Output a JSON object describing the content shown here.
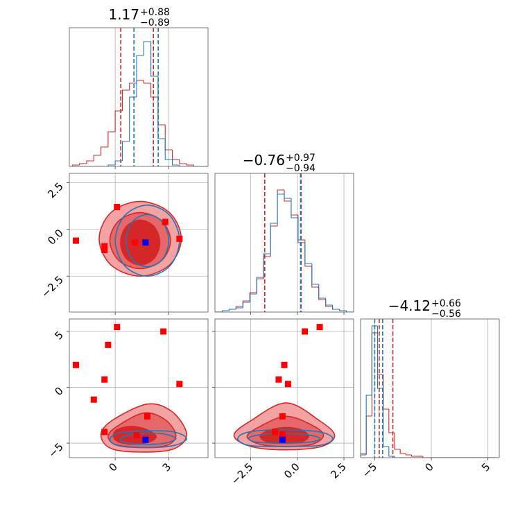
{
  "chart_data": [
    {
      "type": "histogram",
      "title": "1.17",
      "title_sup": "+0.88",
      "title_sub": "−0.89",
      "xlim": [
        -2.57,
        5.2
      ],
      "xticks": [
        0,
        3
      ],
      "show_xtick_labels": false,
      "ylim": [
        0,
        100
      ],
      "grid": true,
      "bins": [
        -2.4,
        -2.0,
        -1.6,
        -1.2,
        -0.8,
        -0.4,
        0,
        0.4,
        0.8,
        1.2,
        1.6,
        2.0,
        2.4,
        2.8,
        3.2,
        3.6,
        4.0,
        4.4,
        4.8,
        5.2
      ],
      "series": [
        {
          "color": "#d62728",
          "values": [
            1,
            2,
            4,
            8,
            14,
            25,
            40,
            55,
            60,
            62,
            60,
            50,
            30,
            12,
            5,
            2,
            1,
            0,
            0
          ],
          "quantiles": [
            0.31,
            2.14
          ]
        },
        {
          "color": "#1f77b4",
          "values": [
            0,
            0,
            0,
            0,
            0,
            1,
            4,
            18,
            50,
            80,
            90,
            65,
            20,
            5,
            1,
            0,
            0,
            0,
            0
          ],
          "quantiles": [
            1.05,
            2.41
          ]
        }
      ]
    },
    {
      "type": "contour",
      "xlim": [
        -2.57,
        5.2
      ],
      "ylim": [
        -4.42,
        3.0
      ],
      "grid": true,
      "xticks": [
        0,
        3
      ],
      "show_xtick_labels": false,
      "yticks": [
        {
          "value": -2.5,
          "label": "−2.5"
        },
        {
          "value": 0,
          "label": "0.0"
        },
        2.5
      ],
      "show_ytick_labels": true,
      "contours": [
        {
          "color": "#d62728",
          "fill": "#f3a3a3",
          "x": [
            3.7,
            3.03,
            1.4,
            -0.23,
            -0.9,
            -0.23,
            1.4,
            3.03
          ],
          "y": [
            -0.5,
            0.91,
            1.5,
            0.91,
            -0.5,
            -1.91,
            -2.5,
            -1.91
          ]
        },
        {
          "color": "#d62728",
          "fill": "#e6686a",
          "x": [
            3.1,
            2.6,
            1.4,
            0.2,
            -0.3,
            0.2,
            1.4,
            2.6
          ],
          "y": [
            -0.6,
            0.46,
            0.9,
            0.46,
            -0.6,
            -1.66,
            -2.1,
            -1.66
          ]
        },
        {
          "color": "#d62728",
          "fill": "#d62728",
          "x": [
            2.5,
            2.18,
            1.4,
            0.62,
            0.3,
            0.62,
            1.4,
            2.18
          ],
          "y": [
            -0.7,
            0.15,
            0.5,
            0.15,
            -0.7,
            -1.55,
            -1.9,
            -1.55
          ]
        },
        {
          "color": "#1f77b4",
          "x": [
            3.6,
            3.07,
            1.8,
            0.53,
            0,
            0.53,
            1.8,
            3.07
          ],
          "y": [
            -0.6,
            0.74,
            1.3,
            0.74,
            -0.6,
            -1.94,
            -2.5,
            -1.94
          ]
        },
        {
          "color": "#1f77b4",
          "x": [
            3.0,
            2.65,
            1.8,
            0.95,
            0.6,
            0.95,
            1.8,
            2.65
          ],
          "y": [
            -0.6,
            0.39,
            0.8,
            0.39,
            -0.6,
            -1.59,
            -2.0,
            -1.59
          ]
        }
      ],
      "series": [
        {
          "color": "#ff0000",
          "x": [
            -2.2,
            0.1,
            -0.6,
            -0.6,
            1.1,
            2.8,
            3.6
          ],
          "y": [
            -0.6,
            1.2,
            -0.9,
            -1.1,
            -0.7,
            0.4,
            -0.5
          ]
        },
        {
          "color": "#0000ff",
          "x": [
            1.7
          ],
          "y": [
            -0.7
          ]
        }
      ]
    },
    {
      "type": "histogram",
      "title": "−0.76",
      "title_sup": "+0.97",
      "title_sub": "−0.94",
      "xlim": [
        -4.42,
        3.02
      ],
      "xticks": [
        -2.5,
        0,
        2.5
      ],
      "show_xtick_labels": false,
      "ylim": [
        0,
        100
      ],
      "grid": true,
      "bins": [
        -4.4,
        -4.03,
        -3.66,
        -3.29,
        -2.92,
        -2.55,
        -2.18,
        -1.81,
        -1.44,
        -1.07,
        -0.7,
        -0.33,
        0.04,
        0.41,
        0.78,
        1.15,
        1.52,
        1.89,
        2.26,
        2.63,
        3.0
      ],
      "series": [
        {
          "color": "#d62728",
          "values": [
            0,
            1,
            2,
            4,
            8,
            14,
            24,
            40,
            62,
            88,
            80,
            70,
            52,
            33,
            18,
            9,
            4,
            2,
            1,
            0
          ],
          "quantiles": [
            -1.75,
            0.2
          ]
        },
        {
          "color": "#1f77b4",
          "values": [
            0,
            1,
            2,
            3,
            7,
            13,
            25,
            42,
            64,
            85,
            82,
            68,
            50,
            35,
            20,
            10,
            5,
            2,
            1,
            0
          ],
          "quantiles": [
            0.17
          ]
        }
      ]
    },
    {
      "type": "contour",
      "xlim": [
        -2.57,
        5.2
      ],
      "ylim": [
        -6.3,
        6.12
      ],
      "grid": true,
      "xticks": [
        0,
        3
      ],
      "show_xtick_labels": true,
      "yticks": [
        {
          "value": -5,
          "label": "−5"
        },
        0,
        5
      ],
      "show_ytick_labels": true,
      "contours": [
        {
          "color": "#d62728",
          "fill": "#f3a3a3",
          "x": [
            4.0,
            3.2,
            1.8,
            -0.2,
            -0.8,
            -0.2,
            1.6,
            3.3
          ],
          "y": [
            -4.2,
            -2.2,
            -1.5,
            -3.0,
            -4.3,
            -5.5,
            -5.8,
            -5.5
          ]
        },
        {
          "color": "#d62728",
          "fill": "#e6686a",
          "x": [
            3.4,
            2.8,
            1.6,
            0.1,
            -0.4,
            0.1,
            1.6,
            2.9
          ],
          "y": [
            -4.3,
            -2.9,
            -2.3,
            -3.5,
            -4.4,
            -5.2,
            -5.4,
            -5.2
          ]
        },
        {
          "color": "#d62728",
          "fill": "#d62728",
          "x": [
            2.3,
            1.8,
            0.9,
            0.1,
            -0.1,
            0.2,
            1.0,
            1.9
          ],
          "y": [
            -4.4,
            -3.8,
            -3.5,
            -3.8,
            -4.4,
            -4.9,
            -5.1,
            -4.9
          ]
        },
        {
          "color": "#1f77b4",
          "x": [
            4.0,
            3.3,
            1.8,
            0.2,
            -0.3,
            0.2,
            1.8,
            3.3
          ],
          "y": [
            -4.6,
            -4.0,
            -3.9,
            -4.1,
            -4.7,
            -5.2,
            -5.4,
            -5.2
          ]
        },
        {
          "color": "#1f77b4",
          "x": [
            3.4,
            2.8,
            1.8,
            0.7,
            0.3,
            0.7,
            1.8,
            2.8
          ],
          "y": [
            -4.6,
            -4.2,
            -4.1,
            -4.3,
            -4.7,
            -5.0,
            -5.1,
            -5.0
          ]
        }
      ],
      "series": [
        {
          "color": "#ff0000",
          "x": [
            -2.2,
            -1.2,
            -0.6,
            -0.4,
            0.1,
            2.7,
            3.6,
            -0.6,
            1.2,
            1.8
          ],
          "y": [
            2.0,
            -1.1,
            0.7,
            3.8,
            5.4,
            5.0,
            0.3,
            -4.0,
            -4.3,
            -2.6
          ]
        },
        {
          "color": "#0000ff",
          "x": [
            1.7
          ],
          "y": [
            -4.7
          ]
        }
      ]
    },
    {
      "type": "contour",
      "xlim": [
        -4.42,
        3.02
      ],
      "ylim": [
        -6.3,
        6.12
      ],
      "grid": true,
      "xticks": [
        {
          "value": -2.5,
          "label": "−2.5"
        },
        {
          "value": 0,
          "label": "0.0"
        },
        2.5
      ],
      "show_xtick_labels": true,
      "yticks": [
        -5,
        0,
        5
      ],
      "show_ytick_labels": false,
      "contours": [
        {
          "color": "#d62728",
          "fill": "#f3a3a3",
          "x": [
            2.0,
            1.2,
            -0.6,
            -2.5,
            -3.4,
            -2.5,
            -0.6,
            1.3
          ],
          "y": [
            -4.3,
            -3.0,
            -1.4,
            -3.0,
            -4.3,
            -5.3,
            -5.6,
            -5.3
          ]
        },
        {
          "color": "#d62728",
          "fill": "#e6686a",
          "x": [
            1.4,
            0.8,
            -0.6,
            -2.0,
            -2.7,
            -2.0,
            -0.6,
            0.8
          ],
          "y": [
            -4.3,
            -3.4,
            -2.6,
            -3.5,
            -4.4,
            -5.1,
            -5.3,
            -5.1
          ]
        },
        {
          "color": "#d62728",
          "fill": "#d62728",
          "x": [
            0.6,
            0.2,
            -0.7,
            -1.6,
            -2.0,
            -1.6,
            -0.7,
            0.2
          ],
          "y": [
            -4.4,
            -3.8,
            -3.6,
            -3.9,
            -4.4,
            -4.9,
            -5.0,
            -4.9
          ]
        },
        {
          "color": "#1f77b4",
          "x": [
            1.9,
            1.2,
            -0.8,
            -2.6,
            -3.2,
            -2.6,
            -0.8,
            1.2
          ],
          "y": [
            -4.6,
            -4.0,
            -3.8,
            -4.0,
            -4.6,
            -5.2,
            -5.3,
            -5.2
          ]
        },
        {
          "color": "#1f77b4",
          "x": [
            1.2,
            0.7,
            -0.8,
            -2.2,
            -2.6,
            -2.2,
            -0.8,
            0.7
          ],
          "y": [
            -4.6,
            -4.3,
            -4.1,
            -4.3,
            -4.6,
            -4.9,
            -5.0,
            -4.9
          ]
        }
      ],
      "series": [
        {
          "color": "#ff0000",
          "x": [
            0.4,
            1.2,
            -0.7,
            -1.0,
            -0.5,
            -0.8,
            -1.2,
            -0.8
          ],
          "y": [
            5.0,
            5.4,
            2.0,
            0.7,
            0.3,
            -2.6,
            -4.0,
            -4.2
          ]
        },
        {
          "color": "#0000ff",
          "x": [
            -0.8
          ],
          "y": [
            -4.7
          ]
        }
      ]
    },
    {
      "type": "histogram",
      "title": "−4.12",
      "title_sup": "+0.66",
      "title_sub": "−0.56",
      "xlim": [
        -6.25,
        6.0
      ],
      "xticks": [
        {
          "value": -5,
          "label": "−5"
        },
        0,
        5
      ],
      "show_xtick_labels": true,
      "ylim": [
        0,
        100
      ],
      "grid": true,
      "bins": [
        -6.25,
        -5.75,
        -5.25,
        -4.75,
        -4.25,
        -3.75,
        -3.25,
        -2.75,
        -2.25,
        -1.75,
        -1.25,
        -0.75,
        -0.25,
        0.25,
        0.75,
        1.25,
        1.75,
        2.25,
        2.75,
        3.25,
        3.75,
        4.25,
        4.75,
        5.25,
        5.75
      ],
      "series": [
        {
          "color": "#d62728",
          "values": [
            2,
            30,
            90,
            60,
            35,
            18,
            6,
            3,
            2,
            1,
            1,
            0,
            0,
            0,
            0,
            0,
            0,
            0,
            0,
            0,
            0,
            0,
            0,
            0
          ],
          "quantiles": [
            -4.6,
            -3.4
          ]
        },
        {
          "color": "#1f77b4",
          "values": [
            3,
            45,
            95,
            50,
            8,
            1,
            0,
            0,
            0,
            0,
            0,
            0,
            0,
            0,
            0,
            0,
            0,
            0,
            0,
            0,
            0,
            0,
            0,
            0
          ],
          "quantiles": [
            -5.0,
            -4.3
          ]
        }
      ]
    }
  ]
}
